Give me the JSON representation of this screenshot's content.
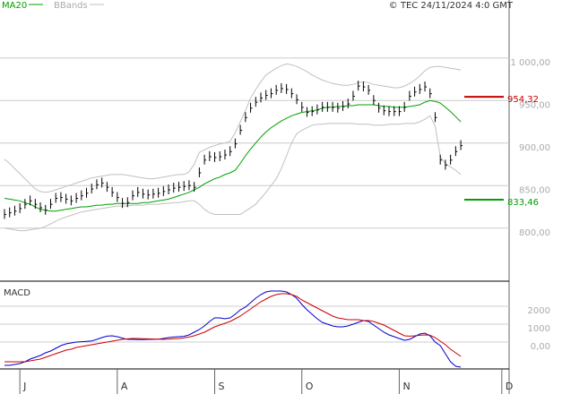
{
  "chart_data": [
    {
      "type": "stock",
      "credit": "© TEC 24/11/2024 4:0 GMT",
      "categories": [
        null,
        null,
        null,
        "J",
        null,
        null,
        null,
        null,
        null,
        null,
        null,
        null,
        null,
        null,
        null,
        null,
        null,
        null,
        null,
        null,
        null,
        null,
        "A",
        null,
        null,
        null,
        null,
        null,
        null,
        null,
        null,
        null,
        null,
        null,
        null,
        null,
        null,
        null,
        null,
        null,
        null,
        "S",
        null,
        null,
        null,
        null,
        null,
        null,
        null,
        null,
        null,
        null,
        null,
        null,
        null,
        null,
        null,
        null,
        "O",
        null,
        null,
        null,
        null,
        null,
        null,
        null,
        null,
        null,
        null,
        null,
        null,
        null,
        null,
        null,
        null,
        null,
        null,
        "N",
        null,
        null,
        null,
        null,
        null,
        null,
        null,
        null,
        null,
        null,
        null,
        null,
        null,
        null,
        null,
        null,
        null,
        null,
        null,
        "D"
      ],
      "close": [
        816,
        818,
        820,
        823,
        828,
        832,
        828,
        824,
        821,
        828,
        835,
        836,
        834,
        832,
        835,
        838,
        841,
        846,
        851,
        853,
        848,
        842,
        836,
        829,
        830,
        838,
        842,
        840,
        839,
        840,
        841,
        843,
        845,
        847,
        848,
        849,
        850,
        848,
        865,
        880,
        884,
        883,
        884,
        886,
        890,
        899,
        915,
        930,
        941,
        948,
        953,
        956,
        958,
        962,
        964,
        963,
        958,
        951,
        942,
        936,
        937,
        939,
        942,
        942,
        942,
        941,
        943,
        946,
        955,
        967,
        966,
        962,
        950,
        941,
        938,
        937,
        937,
        937,
        942,
        955,
        960,
        963,
        966,
        958,
        930,
        880,
        874,
        880,
        890,
        897,
        null,
        null,
        null,
        null,
        null,
        null,
        null,
        null
      ],
      "close_color": "#000000",
      "series": [
        {
          "name": "MA20",
          "color": "#00a000",
          "values": [
            835,
            834,
            833,
            832,
            830,
            828,
            825,
            822,
            821,
            820,
            820,
            821,
            822,
            823,
            824,
            825,
            825,
            826,
            827,
            827,
            828,
            828,
            829,
            829,
            829,
            829,
            829,
            830,
            830,
            831,
            832,
            833,
            834,
            836,
            838,
            840,
            842,
            845,
            848,
            852,
            855,
            858,
            860,
            863,
            865,
            868,
            876,
            885,
            893,
            900,
            907,
            913,
            918,
            922,
            926,
            929,
            932,
            934,
            936,
            937,
            938,
            939,
            941,
            942,
            942,
            943,
            943,
            944,
            944,
            945,
            945,
            945,
            945,
            944,
            943,
            943,
            942,
            942,
            942,
            943,
            944,
            945,
            948,
            950,
            949,
            947,
            942,
            937,
            931,
            925,
            null,
            null,
            null,
            null,
            null,
            null,
            null,
            null
          ]
        },
        {
          "name": "BBands",
          "color": "#c0c0c0",
          "upper": [
            881,
            876,
            870,
            864,
            858,
            852,
            846,
            843,
            842,
            843,
            845,
            847,
            849,
            851,
            853,
            855,
            857,
            859,
            860,
            861,
            862,
            863,
            863,
            863,
            862,
            861,
            860,
            859,
            858,
            858,
            859,
            860,
            861,
            862,
            863,
            863,
            866,
            875,
            889,
            892,
            895,
            897,
            899,
            900,
            902,
            912,
            925,
            938,
            953,
            963,
            972,
            980,
            984,
            988,
            991,
            993,
            992,
            990,
            987,
            984,
            980,
            977,
            974,
            972,
            970,
            969,
            968,
            968,
            969,
            971,
            972,
            971,
            969,
            968,
            967,
            966,
            965,
            965,
            967,
            970,
            974,
            979,
            985,
            989,
            990,
            990,
            989,
            988,
            987,
            986,
            null,
            null,
            null,
            null,
            null,
            null,
            null,
            null
          ],
          "lower": [
            800,
            799,
            798,
            797,
            797,
            798,
            799,
            800,
            802,
            805,
            808,
            811,
            813,
            815,
            817,
            819,
            820,
            821,
            822,
            823,
            824,
            825,
            826,
            826,
            826,
            827,
            827,
            827,
            828,
            828,
            828,
            829,
            829,
            830,
            830,
            831,
            832,
            832,
            828,
            822,
            818,
            816,
            816,
            816,
            816,
            816,
            816,
            820,
            824,
            828,
            835,
            842,
            850,
            858,
            870,
            885,
            900,
            911,
            915,
            918,
            921,
            922,
            922,
            923,
            923,
            923,
            923,
            923,
            923,
            922,
            922,
            922,
            921,
            921,
            921,
            922,
            922,
            922,
            923,
            923,
            923,
            925,
            928,
            932,
            920,
            884,
            876,
            872,
            868,
            863,
            null,
            null,
            null,
            null,
            null,
            null,
            null,
            null
          ]
        }
      ],
      "levels": [
        {
          "value": 954.32,
          "label": "954,32",
          "color": "#c00000"
        },
        {
          "value": 833.46,
          "label": "833,46",
          "color": "#00a000"
        }
      ],
      "ylim": [
        738,
        1065
      ],
      "yticks": [
        {
          "value": 800,
          "label": "800,00"
        },
        {
          "value": 850,
          "label": "850,00"
        },
        {
          "value": 900,
          "label": "900,00"
        },
        {
          "value": 950,
          "label": "950,00"
        },
        {
          "value": 1000,
          "label": "1 000,00"
        }
      ],
      "grid": true
    },
    {
      "type": "line",
      "title": "MACD",
      "series": [
        {
          "color": "#0000cc",
          "values": [
            -1300,
            -1300,
            -1250,
            -1200,
            -1100,
            -950,
            -850,
            -750,
            -600,
            -500,
            -350,
            -200,
            -100,
            -50,
            0,
            20,
            40,
            60,
            150,
            250,
            330,
            350,
            300,
            220,
            150,
            150,
            140,
            140,
            150,
            150,
            160,
            200,
            250,
            280,
            300,
            320,
            400,
            550,
            700,
            900,
            1150,
            1350,
            1350,
            1300,
            1350,
            1550,
            1800,
            1950,
            2200,
            2450,
            2650,
            2800,
            2850,
            2850,
            2850,
            2800,
            2650,
            2450,
            2100,
            1800,
            1550,
            1300,
            1100,
            1000,
            900,
            850,
            850,
            900,
            1000,
            1100,
            1200,
            1150,
            950,
            750,
            550,
            400,
            300,
            200,
            100,
            150,
            300,
            450,
            500,
            350,
            0,
            -200,
            -650,
            -1100,
            -1350,
            -1400,
            null,
            null,
            null,
            null,
            null,
            null,
            null,
            null
          ]
        },
        {
          "color": "#cc0000",
          "values": [
            -1100,
            -1100,
            -1100,
            -1100,
            -1100,
            -1050,
            -1000,
            -950,
            -850,
            -750,
            -650,
            -550,
            -450,
            -400,
            -300,
            -250,
            -200,
            -150,
            -100,
            -50,
            0,
            50,
            100,
            150,
            180,
            200,
            200,
            190,
            180,
            170,
            160,
            150,
            160,
            180,
            200,
            230,
            280,
            350,
            450,
            550,
            700,
            850,
            950,
            1050,
            1150,
            1300,
            1450,
            1650,
            1850,
            2050,
            2250,
            2400,
            2550,
            2650,
            2700,
            2700,
            2650,
            2550,
            2350,
            2200,
            2050,
            1900,
            1750,
            1600,
            1450,
            1350,
            1300,
            1250,
            1250,
            1250,
            1200,
            1200,
            1150,
            1050,
            950,
            800,
            650,
            500,
            350,
            330,
            350,
            380,
            400,
            380,
            250,
            50,
            -150,
            -400,
            -600,
            -800,
            null,
            null,
            null,
            null,
            null,
            null,
            null,
            null
          ]
        }
      ],
      "ylim": [
        -1500,
        3200
      ],
      "yticks": [
        2000,
        1000,
        {
          "value": 0,
          "label": "0,00"
        }
      ],
      "grid": true
    }
  ]
}
